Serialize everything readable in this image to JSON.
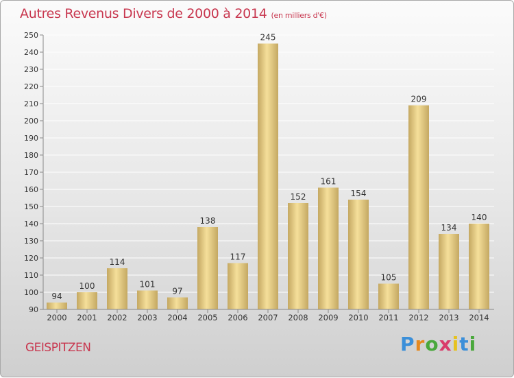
{
  "header": {
    "title": "Autres Revenus Divers de 2000 à 2014",
    "unit": "(en milliers d'€)"
  },
  "footer": {
    "location": "GEISPITZEN",
    "brand": "Proxiti"
  },
  "colors": {
    "accent": "#c8374f",
    "bar_light": "#f5df9a",
    "bar_dark": "#c4a862"
  },
  "chart_data": {
    "type": "bar",
    "title": "Autres Revenus Divers de 2000 à 2014",
    "xlabel": "",
    "ylabel": "",
    "categories": [
      "2000",
      "2001",
      "2002",
      "2003",
      "2004",
      "2005",
      "2006",
      "2007",
      "2008",
      "2009",
      "2010",
      "2011",
      "2012",
      "2013",
      "2014"
    ],
    "values": [
      94,
      100,
      114,
      101,
      97,
      138,
      117,
      245,
      152,
      161,
      154,
      105,
      209,
      134,
      140
    ],
    "ylim": [
      90,
      250
    ],
    "yticks": [
      90,
      100,
      110,
      120,
      130,
      140,
      150,
      160,
      170,
      180,
      190,
      200,
      210,
      220,
      230,
      240,
      250
    ],
    "grid": true,
    "data_labels": true
  }
}
